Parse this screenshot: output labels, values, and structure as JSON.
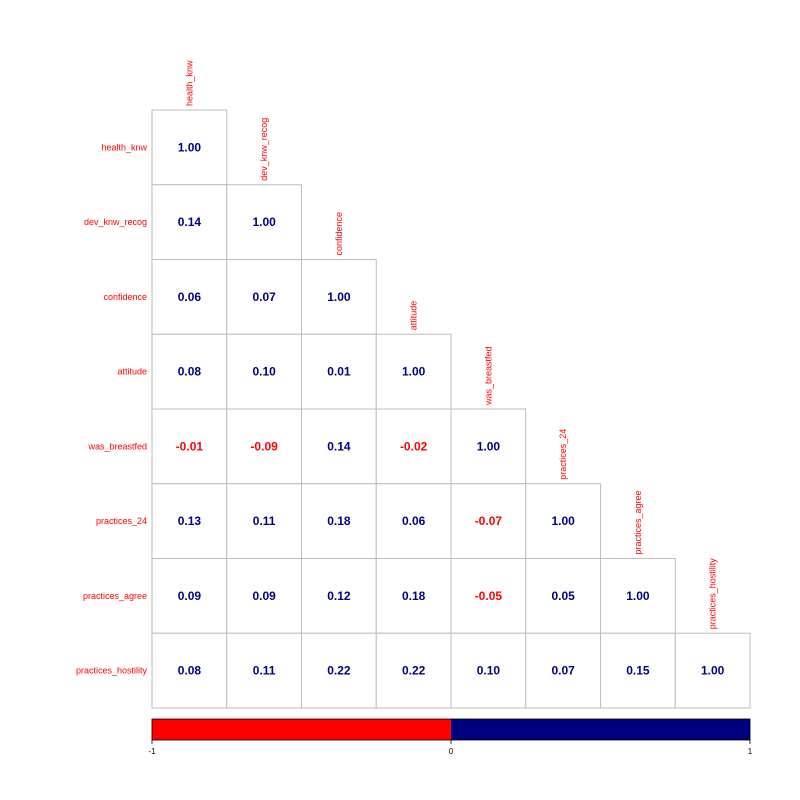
{
  "chart_data": {
    "type": "heatmap",
    "variables": [
      "health_knw",
      "dev_knw_recog",
      "confidence",
      "attitude",
      "was_breastfed",
      "practices_24",
      "practices_agree",
      "practices_hostility"
    ],
    "matrix": [
      [
        1.0
      ],
      [
        0.14,
        1.0
      ],
      [
        0.06,
        0.07,
        1.0
      ],
      [
        0.08,
        0.1,
        0.01,
        1.0
      ],
      [
        -0.01,
        -0.09,
        0.14,
        -0.02,
        1.0
      ],
      [
        0.13,
        0.11,
        0.18,
        0.06,
        -0.07,
        1.0
      ],
      [
        0.09,
        0.09,
        0.12,
        0.18,
        -0.05,
        0.05,
        1.0
      ],
      [
        0.08,
        0.11,
        0.22,
        0.22,
        0.1,
        0.07,
        0.15,
        1.0
      ]
    ],
    "layout": "lower-triangle",
    "colorbar": {
      "min": -1,
      "max": 1,
      "ticks": [
        "-1",
        "0",
        "1"
      ],
      "negative_color": "#ff0000",
      "positive_color": "#00007f"
    },
    "label_color": "#ff0000",
    "grid_color": "#bebebe"
  }
}
